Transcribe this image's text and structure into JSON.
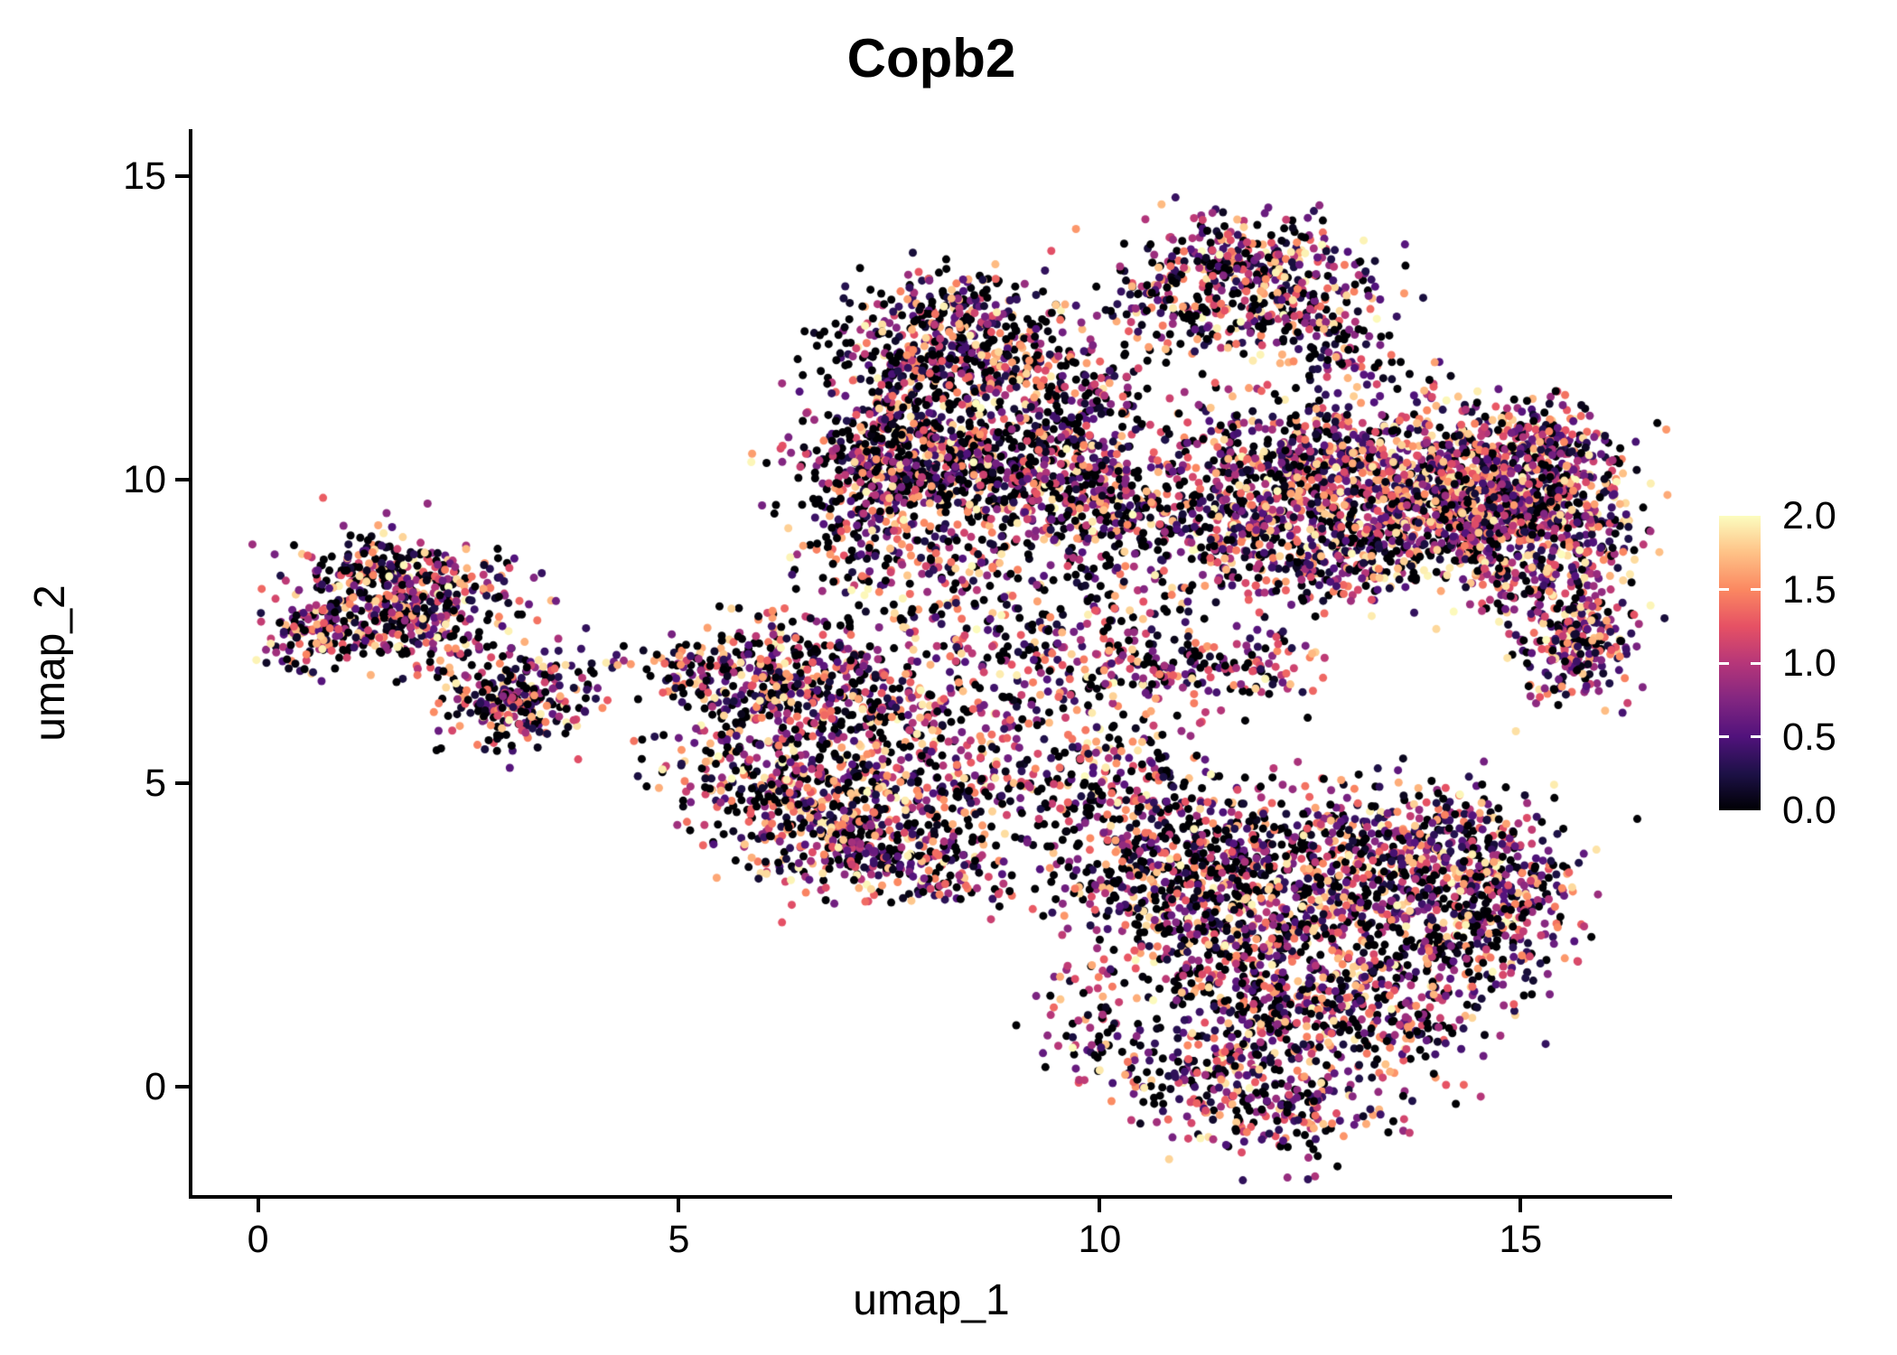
{
  "title": "Copb2",
  "axes": {
    "x": {
      "label": "umap_1",
      "ticks": [
        0,
        5,
        10,
        15
      ]
    },
    "y": {
      "label": "umap_2",
      "ticks": [
        0,
        5,
        10,
        15
      ]
    }
  },
  "legend": {
    "labels": [
      "2.0",
      "1.5",
      "1.0",
      "0.5",
      "0.0"
    ],
    "min": 0.0,
    "max": 2.0
  },
  "chart_data": {
    "type": "scatter",
    "title": "Copb2",
    "xlabel": "umap_1",
    "ylabel": "umap_2",
    "xlim": [
      -0.8,
      16.8
    ],
    "ylim": [
      -1.82,
      15.77
    ],
    "x_ticks": [
      0,
      5,
      10,
      15
    ],
    "y_ticks": [
      0,
      5,
      10,
      15
    ],
    "grid": false,
    "legend_position": "right",
    "color_domain": [
      0,
      2
    ],
    "colormap": {
      "name": "magma",
      "stops": [
        [
          0.0,
          "#000004"
        ],
        [
          0.125,
          "#1d1147"
        ],
        [
          0.25,
          "#51127c"
        ],
        [
          0.375,
          "#822681"
        ],
        [
          0.5,
          "#b63679"
        ],
        [
          0.625,
          "#e65164"
        ],
        [
          0.75,
          "#fb8861"
        ],
        [
          0.875,
          "#fec287"
        ],
        [
          1.0,
          "#fcfdbf"
        ]
      ]
    },
    "point_radius": 4.5,
    "seed": 1234,
    "value_model": {
      "power": 1.2,
      "max": 2
    },
    "cluster_fields": [
      "x",
      "y",
      "sd_x",
      "sd_y",
      "n_points",
      "zero_fraction"
    ],
    "clusters": [
      [
        1.35,
        8.3,
        0.45,
        0.45,
        230,
        0.25
      ],
      [
        2.2,
        8.1,
        0.5,
        0.4,
        190,
        0.25
      ],
      [
        0.65,
        7.45,
        0.3,
        0.3,
        110,
        0.25
      ],
      [
        1.8,
        7.5,
        0.5,
        0.35,
        130,
        0.25
      ],
      [
        3.0,
        6.35,
        0.42,
        0.38,
        240,
        0.3
      ],
      [
        3.7,
        6.8,
        0.5,
        0.3,
        45,
        0.3
      ],
      [
        6.2,
        6.8,
        0.6,
        0.5,
        240,
        0.28
      ],
      [
        5.8,
        5.6,
        0.5,
        0.7,
        210,
        0.28
      ],
      [
        6.6,
        4.6,
        0.6,
        0.6,
        260,
        0.28
      ],
      [
        7.4,
        4.0,
        0.6,
        0.5,
        240,
        0.28
      ],
      [
        7.5,
        5.3,
        0.55,
        0.6,
        190,
        0.28
      ],
      [
        7.2,
        6.4,
        0.6,
        0.5,
        170,
        0.28
      ],
      [
        5.1,
        6.9,
        0.25,
        0.25,
        50,
        0.3
      ],
      [
        8.3,
        3.6,
        0.4,
        0.4,
        80,
        0.3
      ],
      [
        8.3,
        12.5,
        0.6,
        0.5,
        300,
        0.3
      ],
      [
        8.9,
        11.6,
        0.7,
        0.6,
        260,
        0.32
      ],
      [
        7.6,
        11.8,
        0.5,
        0.5,
        170,
        0.32
      ],
      [
        7.5,
        10.3,
        0.55,
        0.5,
        340,
        0.35
      ],
      [
        8.5,
        10.1,
        0.8,
        0.55,
        380,
        0.33
      ],
      [
        9.6,
        10.6,
        0.7,
        0.6,
        260,
        0.3
      ],
      [
        9.9,
        9.5,
        0.6,
        0.4,
        210,
        0.3
      ],
      [
        7.1,
        9.0,
        0.4,
        0.4,
        100,
        0.35
      ],
      [
        11.6,
        13.6,
        0.6,
        0.4,
        240,
        0.25
      ],
      [
        12.3,
        12.9,
        0.55,
        0.5,
        190,
        0.25
      ],
      [
        10.9,
        12.8,
        0.45,
        0.45,
        140,
        0.28
      ],
      [
        12.9,
        12.1,
        0.4,
        0.4,
        80,
        0.25
      ],
      [
        12.2,
        10.3,
        0.8,
        0.55,
        380,
        0.2
      ],
      [
        13.6,
        10.1,
        0.8,
        0.55,
        470,
        0.16
      ],
      [
        14.8,
        9.8,
        0.7,
        0.6,
        520,
        0.15
      ],
      [
        15.5,
        9.3,
        0.45,
        0.55,
        260,
        0.18
      ],
      [
        13.9,
        9.0,
        0.9,
        0.45,
        340,
        0.2
      ],
      [
        11.4,
        9.3,
        0.6,
        0.5,
        210,
        0.25
      ],
      [
        12.6,
        8.7,
        0.7,
        0.4,
        210,
        0.22
      ],
      [
        15.1,
        10.7,
        0.5,
        0.35,
        150,
        0.18
      ],
      [
        15.7,
        7.3,
        0.35,
        0.45,
        230,
        0.2
      ],
      [
        15.2,
        8.2,
        0.4,
        0.3,
        70,
        0.25
      ],
      [
        8.6,
        7.6,
        0.8,
        0.6,
        130,
        0.3
      ],
      [
        9.6,
        6.9,
        0.7,
        0.5,
        110,
        0.3
      ],
      [
        10.7,
        6.9,
        0.45,
        0.4,
        100,
        0.25
      ],
      [
        11.8,
        6.9,
        0.4,
        0.35,
        80,
        0.25
      ],
      [
        8.9,
        5.9,
        0.6,
        0.5,
        90,
        0.3
      ],
      [
        10.2,
        5.2,
        0.5,
        0.5,
        70,
        0.3
      ],
      [
        12.6,
        3.3,
        1.0,
        0.8,
        520,
        0.28
      ],
      [
        13.8,
        3.9,
        0.7,
        0.6,
        340,
        0.25
      ],
      [
        14.4,
        2.6,
        0.6,
        0.7,
        300,
        0.25
      ],
      [
        11.5,
        3.9,
        0.6,
        0.5,
        260,
        0.3
      ],
      [
        11.1,
        2.7,
        0.55,
        0.6,
        240,
        0.3
      ],
      [
        12.0,
        1.5,
        0.7,
        0.7,
        300,
        0.28
      ],
      [
        13.3,
        1.2,
        0.7,
        0.6,
        260,
        0.25
      ],
      [
        11.4,
        0.2,
        0.6,
        0.5,
        190,
        0.28
      ],
      [
        12.4,
        -0.4,
        0.5,
        0.4,
        130,
        0.25
      ],
      [
        10.4,
        4.6,
        0.45,
        0.5,
        130,
        0.3
      ],
      [
        10.0,
        3.4,
        0.4,
        0.5,
        100,
        0.32
      ],
      [
        14.9,
        3.4,
        0.4,
        0.5,
        110,
        0.25
      ],
      [
        9.9,
        1.0,
        0.35,
        0.5,
        70,
        0.3
      ],
      [
        8.2,
        8.6,
        0.6,
        0.4,
        80,
        0.35
      ],
      [
        10.3,
        8.3,
        0.5,
        0.4,
        70,
        0.3
      ],
      [
        9.0,
        4.9,
        0.5,
        0.4,
        80,
        0.3
      ]
    ]
  }
}
